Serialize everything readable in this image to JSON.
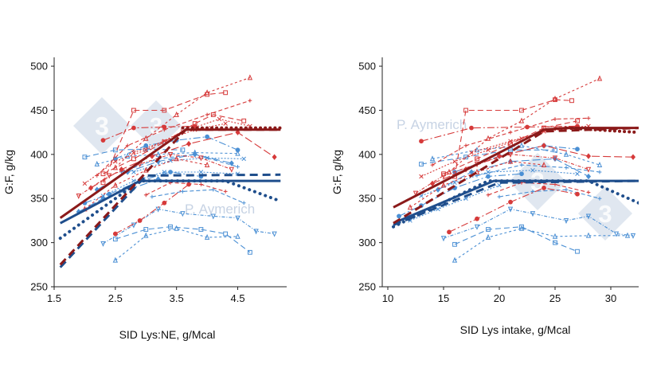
{
  "colors": {
    "red_dark": "#8b1a1a",
    "red_light": "#d63a3a",
    "blue_dark": "#1f4e8c",
    "blue_light": "#4a8fd4",
    "watermark": "#c7d3e4"
  },
  "watermark": {
    "text": "P. Aymerich",
    "logo_digit": "3"
  },
  "chart_data": [
    {
      "type": "line",
      "xlabel": "SID Lys:NE, g/Mcal",
      "ylabel": "G:F, g/kg",
      "xlim": [
        1.5,
        5.3
      ],
      "ylim": [
        250,
        510
      ],
      "xticks": [
        "1.5",
        "2.5",
        "3.5",
        "4.5"
      ],
      "yticks": [
        "250",
        "300",
        "350",
        "400",
        "450",
        "500"
      ],
      "grid": false,
      "fitted": {
        "red_solid": [
          [
            1.6,
            328
          ],
          [
            3.65,
            428
          ],
          [
            5.2,
            428
          ]
        ],
        "red_dashed": [
          [
            1.6,
            275
          ],
          [
            3.65,
            428
          ],
          [
            5.2,
            428
          ]
        ],
        "red_dotted": [
          [
            3.6,
            430
          ],
          [
            5.2,
            430
          ]
        ],
        "blue_solid": [
          [
            1.6,
            322
          ],
          [
            2.9,
            370
          ],
          [
            5.2,
            370
          ]
        ],
        "blue_dashed": [
          [
            1.6,
            272
          ],
          [
            3.0,
            376
          ],
          [
            5.2,
            377
          ]
        ],
        "blue_dotted": [
          [
            1.6,
            305
          ],
          [
            2.9,
            370
          ],
          [
            4.3,
            370
          ],
          [
            5.2,
            347
          ]
        ]
      },
      "studies_red": [
        [
          [
            2.3,
            368
          ],
          [
            2.8,
            450
          ],
          [
            3.3,
            450
          ],
          [
            4.0,
            468
          ],
          [
            4.3,
            470
          ]
        ],
        [
          [
            2.5,
            385
          ],
          [
            3.0,
            418
          ],
          [
            3.5,
            445
          ],
          [
            4.0,
            470
          ],
          [
            4.7,
            487
          ]
        ],
        [
          [
            2.3,
            416
          ],
          [
            2.8,
            430
          ],
          [
            3.3,
            431
          ],
          [
            3.8,
            432
          ]
        ],
        [
          [
            2.2,
            376
          ],
          [
            2.7,
            410
          ],
          [
            3.3,
            428
          ],
          [
            4.0,
            445
          ],
          [
            4.7,
            461
          ]
        ],
        [
          [
            2.0,
            367
          ],
          [
            2.5,
            392
          ],
          [
            3.0,
            405
          ],
          [
            3.6,
            426
          ],
          [
            4.2,
            440
          ],
          [
            4.7,
            432
          ]
        ],
        [
          [
            2.1,
            362
          ],
          [
            2.6,
            383
          ],
          [
            3.1,
            398
          ],
          [
            3.7,
            412
          ],
          [
            4.5,
            425
          ],
          [
            5.1,
            397
          ]
        ],
        [
          [
            1.9,
            353
          ],
          [
            2.4,
            376
          ],
          [
            2.9,
            389
          ],
          [
            3.4,
            400
          ],
          [
            3.9,
            396
          ],
          [
            4.4,
            383
          ]
        ],
        [
          [
            2.3,
            378
          ],
          [
            2.8,
            395
          ],
          [
            3.3,
            414
          ],
          [
            3.8,
            435
          ],
          [
            4.1,
            445
          ],
          [
            4.6,
            438
          ]
        ],
        [
          [
            2.0,
            338
          ],
          [
            2.5,
            365
          ],
          [
            3.0,
            382
          ],
          [
            3.5,
            395
          ],
          [
            4.0,
            388
          ]
        ],
        [
          [
            2.5,
            310
          ],
          [
            2.9,
            325
          ],
          [
            3.3,
            345
          ],
          [
            3.7,
            366
          ]
        ],
        [
          [
            3.0,
            354
          ],
          [
            3.4,
            368
          ],
          [
            3.9,
            366
          ],
          [
            4.3,
            358
          ]
        ],
        [
          [
            2.8,
            402
          ],
          [
            3.3,
            415
          ],
          [
            3.8,
            428
          ],
          [
            4.3,
            435
          ]
        ]
      ],
      "studies_blue": [
        [
          [
            2.0,
            397
          ],
          [
            2.5,
            405
          ],
          [
            3.0,
            406
          ],
          [
            3.6,
            405
          ]
        ],
        [
          [
            2.2,
            389
          ],
          [
            2.7,
            398
          ],
          [
            3.2,
            400
          ],
          [
            3.8,
            402
          ],
          [
            4.5,
            401
          ]
        ],
        [
          [
            2.5,
            395
          ],
          [
            3.0,
            410
          ],
          [
            3.5,
            416
          ],
          [
            4.0,
            420
          ],
          [
            4.5,
            405
          ]
        ],
        [
          [
            2.6,
            380
          ],
          [
            3.2,
            395
          ],
          [
            3.8,
            400
          ],
          [
            4.5,
            386
          ]
        ],
        [
          [
            2.3,
            353
          ],
          [
            2.8,
            370
          ],
          [
            3.3,
            380
          ],
          [
            3.9,
            380
          ],
          [
            4.5,
            378
          ]
        ],
        [
          [
            2.2,
            360
          ],
          [
            2.7,
            380
          ],
          [
            3.2,
            392
          ],
          [
            3.8,
            400
          ],
          [
            4.4,
            390
          ]
        ],
        [
          [
            2.3,
            299
          ],
          [
            2.8,
            320
          ],
          [
            3.2,
            338
          ],
          [
            3.6,
            333
          ],
          [
            4.1,
            330
          ],
          [
            4.5,
            328
          ],
          [
            4.8,
            313
          ],
          [
            5.1,
            310
          ]
        ],
        [
          [
            2.5,
            304
          ],
          [
            3.0,
            315
          ],
          [
            3.4,
            318
          ],
          [
            3.9,
            315
          ],
          [
            4.3,
            310
          ],
          [
            4.7,
            289
          ]
        ],
        [
          [
            2.5,
            280
          ],
          [
            3.0,
            308
          ],
          [
            3.5,
            316
          ],
          [
            4.0,
            306
          ],
          [
            4.5,
            307
          ]
        ],
        [
          [
            2.0,
            345
          ],
          [
            2.4,
            355
          ],
          [
            2.9,
            370
          ],
          [
            3.4,
            380
          ],
          [
            3.9,
            375
          ]
        ],
        [
          [
            3.1,
            352
          ],
          [
            3.6,
            358
          ],
          [
            4.1,
            360
          ],
          [
            4.6,
            345
          ]
        ],
        [
          [
            2.8,
            380
          ],
          [
            3.4,
            393
          ],
          [
            4.0,
            396
          ],
          [
            4.6,
            395
          ]
        ],
        [
          [
            1.9,
            335
          ],
          [
            2.3,
            350
          ],
          [
            2.8,
            362
          ],
          [
            3.2,
            372
          ]
        ]
      ]
    },
    {
      "type": "line",
      "xlabel": "SID Lys intake, g/Mcal",
      "ylabel": "G:F, g/kg",
      "xlim": [
        9.5,
        32.5
      ],
      "ylim": [
        250,
        510
      ],
      "xticks": [
        "10",
        "15",
        "20",
        "25",
        "30"
      ],
      "yticks": [
        "250",
        "300",
        "350",
        "400",
        "450",
        "500"
      ],
      "grid": false,
      "fitted": {
        "red_solid": [
          [
            10.5,
            340
          ],
          [
            24.0,
            428
          ],
          [
            26.0,
            430
          ],
          [
            32.5,
            430
          ]
        ],
        "red_dashed": [
          [
            10.5,
            322
          ],
          [
            24.0,
            426
          ],
          [
            32.5,
            430
          ]
        ],
        "red_dotted": [
          [
            26.0,
            430
          ],
          [
            32.5,
            425
          ]
        ],
        "blue_solid": [
          [
            10.5,
            322
          ],
          [
            19.5,
            370
          ],
          [
            32.5,
            370
          ]
        ],
        "blue_dashed": [
          [
            10.5,
            320
          ],
          [
            20.0,
            368
          ],
          [
            32.5,
            370
          ]
        ],
        "blue_dotted": [
          [
            10.5,
            318
          ],
          [
            19.0,
            370
          ],
          [
            28.0,
            370
          ],
          [
            32.5,
            345
          ]
        ]
      },
      "studies_red": [
        [
          [
            16.0,
            375
          ],
          [
            17.0,
            450
          ],
          [
            22.0,
            450
          ],
          [
            25.0,
            462
          ],
          [
            26.5,
            461
          ]
        ],
        [
          [
            15.5,
            380
          ],
          [
            19.0,
            418
          ],
          [
            22.0,
            438
          ],
          [
            25.0,
            463
          ],
          [
            29.0,
            486
          ]
        ],
        [
          [
            13.0,
            415
          ],
          [
            17.5,
            430
          ],
          [
            22.5,
            431
          ],
          [
            27.0,
            432
          ]
        ],
        [
          [
            14.0,
            388
          ],
          [
            17.0,
            410
          ],
          [
            21.0,
            425
          ],
          [
            25.0,
            440
          ],
          [
            28.0,
            441
          ]
        ],
        [
          [
            13.0,
            375
          ],
          [
            16.0,
            392
          ],
          [
            19.0,
            405
          ],
          [
            22.0,
            418
          ],
          [
            25.0,
            430
          ],
          [
            28.0,
            432
          ]
        ],
        [
          [
            14.0,
            367
          ],
          [
            17.0,
            383
          ],
          [
            20.0,
            398
          ],
          [
            24.0,
            410
          ],
          [
            28.0,
            398
          ],
          [
            32.0,
            397
          ]
        ],
        [
          [
            12.5,
            356
          ],
          [
            15.0,
            376
          ],
          [
            18.0,
            389
          ],
          [
            21.0,
            400
          ],
          [
            25.0,
            396
          ],
          [
            28.0,
            383
          ]
        ],
        [
          [
            15.0,
            378
          ],
          [
            18.0,
            395
          ],
          [
            21.0,
            412
          ],
          [
            24.0,
            430
          ],
          [
            27.0,
            438
          ]
        ],
        [
          [
            12.0,
            340
          ],
          [
            15.0,
            365
          ],
          [
            18.0,
            380
          ],
          [
            21.0,
            392
          ],
          [
            24.0,
            388
          ]
        ],
        [
          [
            15.5,
            312
          ],
          [
            18.0,
            327
          ],
          [
            21.0,
            346
          ],
          [
            24.0,
            362
          ],
          [
            27.0,
            355
          ]
        ],
        [
          [
            19.0,
            354
          ],
          [
            22.0,
            368
          ],
          [
            25.0,
            366
          ],
          [
            28.0,
            357
          ]
        ],
        [
          [
            17.5,
            402
          ],
          [
            21.0,
            415
          ],
          [
            24.0,
            426
          ],
          [
            27.0,
            430
          ]
        ]
      ],
      "studies_blue": [
        [
          [
            13.0,
            389
          ],
          [
            17.0,
            397
          ],
          [
            21.0,
            405
          ],
          [
            25.0,
            405
          ]
        ],
        [
          [
            14.0,
            395
          ],
          [
            18.0,
            405
          ],
          [
            22.0,
            410
          ],
          [
            26.0,
            400
          ],
          [
            29.0,
            388
          ]
        ],
        [
          [
            16.0,
            380
          ],
          [
            20.0,
            398
          ],
          [
            24.0,
            410
          ],
          [
            27.0,
            406
          ]
        ],
        [
          [
            18.0,
            376
          ],
          [
            22.0,
            388
          ],
          [
            26.0,
            385
          ],
          [
            29.0,
            380
          ]
        ],
        [
          [
            13.0,
            353
          ],
          [
            16.0,
            368
          ],
          [
            19.0,
            380
          ],
          [
            23.0,
            382
          ],
          [
            27.0,
            378
          ]
        ],
        [
          [
            14.5,
            360
          ],
          [
            17.5,
            380
          ],
          [
            21.0,
            392
          ],
          [
            25.0,
            395
          ],
          [
            28.0,
            375
          ]
        ],
        [
          [
            15.0,
            305
          ],
          [
            18.0,
            318
          ],
          [
            21.0,
            338
          ],
          [
            23.0,
            333
          ],
          [
            26.0,
            325
          ],
          [
            28.0,
            330
          ],
          [
            30.5,
            310
          ],
          [
            32.0,
            308
          ]
        ],
        [
          [
            16.0,
            298
          ],
          [
            19.0,
            315
          ],
          [
            22.0,
            318
          ],
          [
            25.0,
            300
          ],
          [
            27.0,
            290
          ]
        ],
        [
          [
            16.0,
            280
          ],
          [
            19.0,
            306
          ],
          [
            22.0,
            316
          ],
          [
            25.0,
            307
          ],
          [
            28.0,
            308
          ],
          [
            31.5,
            308
          ]
        ],
        [
          [
            11.0,
            330
          ],
          [
            13.0,
            342
          ],
          [
            16.0,
            362
          ],
          [
            19.0,
            375
          ],
          [
            22.0,
            378
          ]
        ],
        [
          [
            20.0,
            352
          ],
          [
            23.0,
            358
          ],
          [
            26.0,
            360
          ],
          [
            29.0,
            350
          ]
        ],
        [
          [
            12.0,
            325
          ],
          [
            14.5,
            338
          ],
          [
            17.0,
            350
          ],
          [
            20.0,
            365
          ]
        ]
      ]
    }
  ]
}
